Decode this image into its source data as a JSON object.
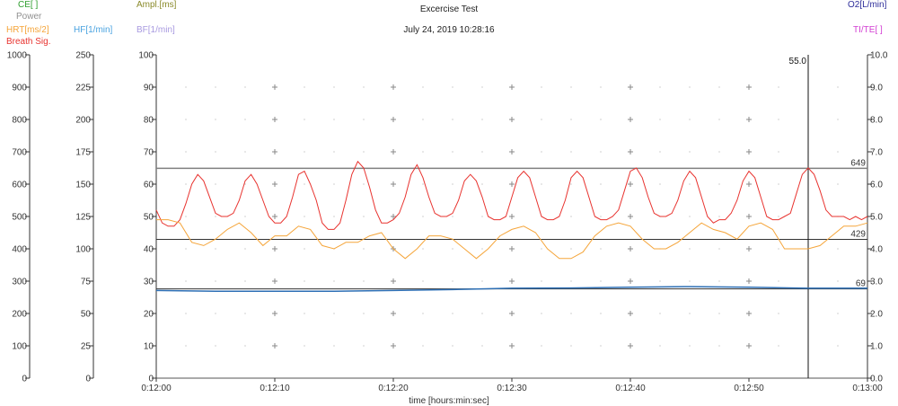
{
  "chart_data": {
    "type": "line",
    "title": "Excercise Test",
    "subtitle": "July 24, 2019 10:28:16",
    "xlabel": "time [hours:min:sec]",
    "x_ticks": [
      "0:12:00",
      "0:12:10",
      "0:12:20",
      "0:12:30",
      "0:12:40",
      "0:12:50",
      "0:13:00"
    ],
    "x_range_sec": [
      720,
      780
    ],
    "grid": true,
    "cursor": {
      "x_sec": 775,
      "label": "55.0"
    },
    "axes": {
      "breath": {
        "label": "Breath Sig.",
        "color": "#e8332f",
        "ylim": [
          0,
          1000
        ],
        "ticks": [
          "1000",
          "900",
          "800",
          "700",
          "600",
          "500",
          "400",
          "300",
          "200",
          "100",
          "0"
        ]
      },
      "hf": {
        "label": "HF[1/min]",
        "color": "#4aa3e0",
        "ylim": [
          0,
          250
        ],
        "ticks": [
          "250",
          "225",
          "200",
          "175",
          "150",
          "125",
          "100",
          "75",
          "50",
          "25",
          "0"
        ]
      },
      "main": {
        "ylim": [
          0,
          100
        ],
        "ticks": [
          "100",
          "90",
          "80",
          "70",
          "60",
          "50",
          "40",
          "30",
          "20",
          "10",
          "0"
        ]
      },
      "o2": {
        "label": "O2[L/min]",
        "color": "#2d2d9a",
        "ylim": [
          0,
          10
        ],
        "ticks": [
          "10.0",
          "9.0",
          "8.0",
          "7.0",
          "6.0",
          "5.0",
          "4.0",
          "3.0",
          "2.0",
          "1.0",
          "0.0"
        ]
      }
    },
    "left_labels": [
      {
        "text": "CE[ ]",
        "color": "#2e9e2e"
      },
      {
        "text": "Power",
        "color": "#909090"
      },
      {
        "text": "HRT[ms/2]",
        "color": "#f5a53a"
      },
      {
        "text": "Breath Sig.",
        "color": "#e8332f"
      },
      {
        "text": "HF[1/min]",
        "color": "#4aa3e0"
      },
      {
        "text": "Ampl.[ms]",
        "color": "#8a8a2a"
      },
      {
        "text": "BF[1/min]",
        "color": "#a89ae0"
      },
      {
        "text": "O2[L/min]",
        "color": "#2d2d9a"
      },
      {
        "text": "TI/TE[ ]",
        "color": "#d23ed2"
      }
    ],
    "ref_lines": [
      {
        "y_main": 64.9,
        "label": "649",
        "color": "#7f7f7f",
        "width": 1.5
      },
      {
        "y_main": 42.9,
        "label": "429",
        "color": "#333333",
        "width": 1
      },
      {
        "y_main": 27.6,
        "label": "69",
        "color": "#333333",
        "width": 1
      }
    ],
    "series": [
      {
        "name": "Breath Sig.",
        "color": "#e8332f",
        "axis": "main",
        "x": [
          720.0,
          720.5,
          721.0,
          721.5,
          722.0,
          722.5,
          723.0,
          723.5,
          724.0,
          724.5,
          725.0,
          725.5,
          726.0,
          726.5,
          727.0,
          727.5,
          728.0,
          728.5,
          729.0,
          729.5,
          730.0,
          730.5,
          731.0,
          731.5,
          732.0,
          732.5,
          733.0,
          733.5,
          734.0,
          734.5,
          735.0,
          735.5,
          736.0,
          736.5,
          737.0,
          737.5,
          738.0,
          738.5,
          739.0,
          739.5,
          740.0,
          740.5,
          741.0,
          741.5,
          742.0,
          742.5,
          743.0,
          743.5,
          744.0,
          744.5,
          745.0,
          745.5,
          746.0,
          746.5,
          747.0,
          747.5,
          748.0,
          748.5,
          749.0,
          749.5,
          750.0,
          750.5,
          751.0,
          751.5,
          752.0,
          752.5,
          753.0,
          753.5,
          754.0,
          754.5,
          755.0,
          755.5,
          756.0,
          756.5,
          757.0,
          757.5,
          758.0,
          758.5,
          759.0,
          759.5,
          760.0,
          760.5,
          761.0,
          761.5,
          762.0,
          762.5,
          763.0,
          763.5,
          764.0,
          764.5,
          765.0,
          765.5,
          766.0,
          766.5,
          767.0,
          767.5,
          768.0,
          768.5,
          769.0,
          769.5,
          770.0,
          770.5,
          771.0,
          771.5,
          772.0,
          772.5,
          773.0,
          773.5,
          774.0,
          774.5,
          775.0,
          775.5,
          776.0,
          776.5,
          777.0,
          777.5,
          778.0,
          778.5,
          779.0,
          779.5,
          780.0
        ],
        "y": [
          52,
          48,
          47,
          47,
          49,
          54,
          60,
          63,
          61,
          56,
          51,
          50,
          50,
          51,
          55,
          61,
          63,
          60,
          55,
          50,
          48,
          48,
          50,
          56,
          63,
          64,
          60,
          55,
          48,
          46,
          46,
          48,
          55,
          63,
          67,
          65,
          59,
          52,
          48,
          48,
          49,
          51,
          56,
          63,
          66,
          62,
          56,
          51,
          50,
          50,
          51,
          55,
          61,
          63,
          61,
          56,
          50,
          49,
          49,
          50,
          56,
          62,
          64,
          62,
          56,
          50,
          49,
          49,
          50,
          55,
          62,
          64,
          62,
          56,
          50,
          49,
          49,
          50,
          52,
          58,
          64,
          65,
          62,
          56,
          51,
          50,
          50,
          51,
          55,
          61,
          64,
          62,
          56,
          50,
          48,
          49,
          49,
          51,
          55,
          61,
          64,
          62,
          56,
          50,
          49,
          49,
          50,
          51,
          57,
          63,
          65,
          63,
          58,
          52,
          50,
          50,
          50,
          49,
          50,
          49,
          50
        ]
      },
      {
        "name": "HRT[ms/2]",
        "color": "#f5a53a",
        "axis": "main",
        "x": [
          720,
          721,
          722,
          723,
          724,
          725,
          726,
          727,
          728,
          729,
          730,
          731,
          732,
          733,
          734,
          735,
          736,
          737,
          738,
          739,
          740,
          741,
          742,
          743,
          744,
          745,
          746,
          747,
          748,
          749,
          750,
          751,
          752,
          753,
          754,
          755,
          756,
          757,
          758,
          759,
          760,
          761,
          762,
          763,
          764,
          765,
          766,
          767,
          768,
          769,
          770,
          771,
          772,
          773,
          774,
          775,
          776,
          777,
          778,
          779,
          780
        ],
        "y": [
          49,
          49,
          48,
          42,
          41,
          43,
          46,
          48,
          45,
          41,
          44,
          44,
          47,
          46,
          41,
          40,
          42,
          42,
          44,
          45,
          40,
          37,
          40,
          44,
          44,
          43,
          40,
          37,
          40,
          44,
          46,
          47,
          45,
          40,
          37,
          37,
          39,
          44,
          47,
          48,
          47,
          43,
          40,
          40,
          42,
          45,
          48,
          46,
          45,
          43,
          47,
          48,
          46,
          40,
          40,
          40,
          41,
          44,
          47,
          47,
          48
        ]
      },
      {
        "name": "O2[L/min]",
        "color": "#2d6fb5",
        "axis": "main",
        "x": [
          720,
          725,
          730,
          735,
          740,
          745,
          750,
          755,
          760,
          765,
          770,
          775,
          780
        ],
        "y": [
          27.1,
          26.9,
          26.9,
          26.9,
          27.1,
          27.4,
          27.8,
          27.9,
          28.1,
          28.3,
          28.1,
          27.8,
          27.8
        ]
      }
    ]
  }
}
